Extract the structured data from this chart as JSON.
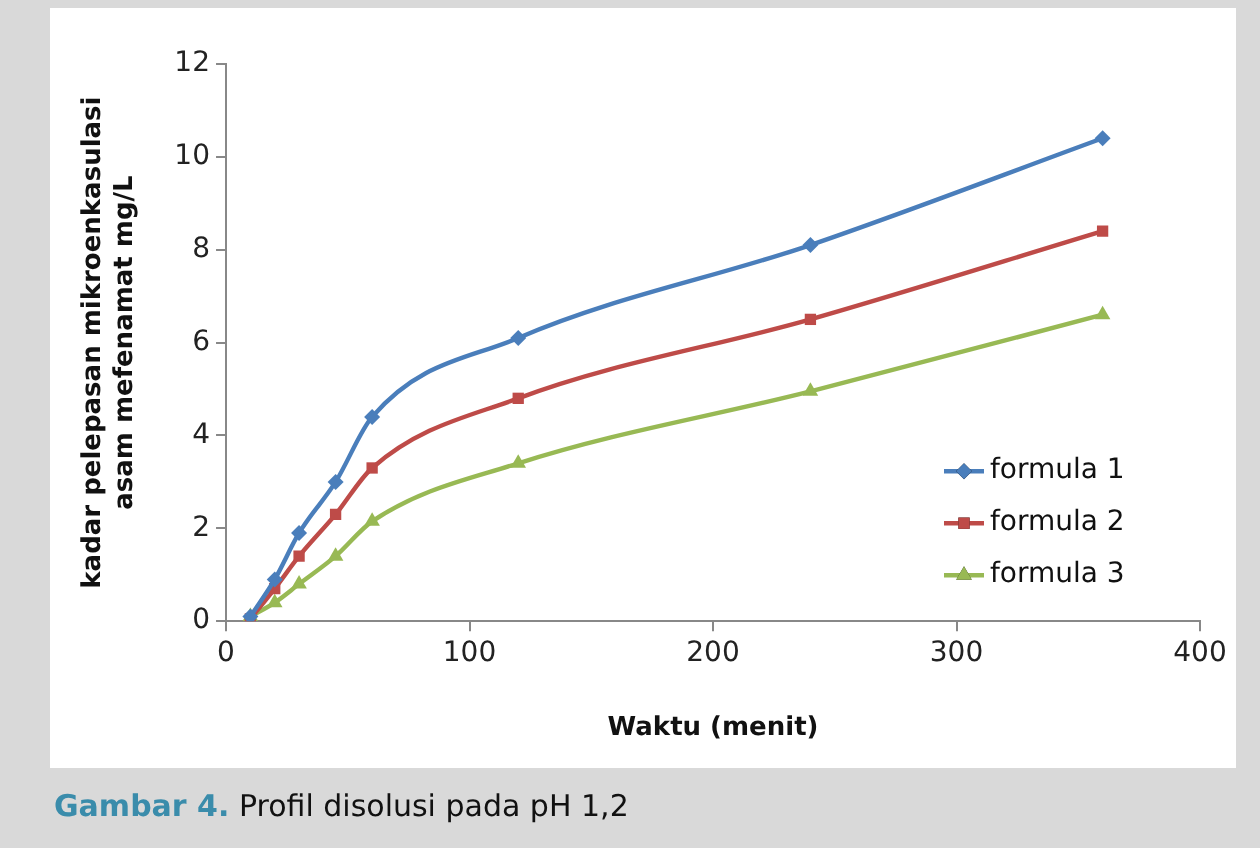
{
  "chart_data": {
    "type": "line",
    "xlabel": "Waktu (menit)",
    "ylabel": "kadar pelepasan mikroenkasulasi\nasam mefenamat mg/L",
    "annotations": [
      "Gambar 4. Profil disolusi pada pH 1,2"
    ],
    "x": [
      10,
      20,
      30,
      45,
      60,
      120,
      240,
      360
    ],
    "series": [
      {
        "name": "formula 1",
        "color": "#4a7ebb",
        "marker": "diamond",
        "values": [
          0.1,
          0.9,
          1.9,
          3.0,
          4.4,
          6.1,
          8.1,
          10.4
        ]
      },
      {
        "name": "formula 2",
        "color": "#be4b48",
        "marker": "square",
        "values": [
          0.05,
          0.7,
          1.4,
          2.3,
          3.3,
          4.8,
          6.5,
          8.4
        ]
      },
      {
        "name": "formula 3",
        "color": "#98b954",
        "marker": "triangle",
        "values": [
          0.1,
          0.4,
          0.8,
          1.4,
          2.15,
          3.4,
          4.95,
          6.6
        ]
      }
    ],
    "xlim": [
      0,
      400
    ],
    "xticks": [
      0,
      100,
      200,
      300,
      400
    ],
    "ylim": [
      0,
      12
    ],
    "yticks": [
      0,
      2,
      4,
      6,
      8,
      10,
      12
    ],
    "grid": false,
    "legend": "bottom right"
  }
}
